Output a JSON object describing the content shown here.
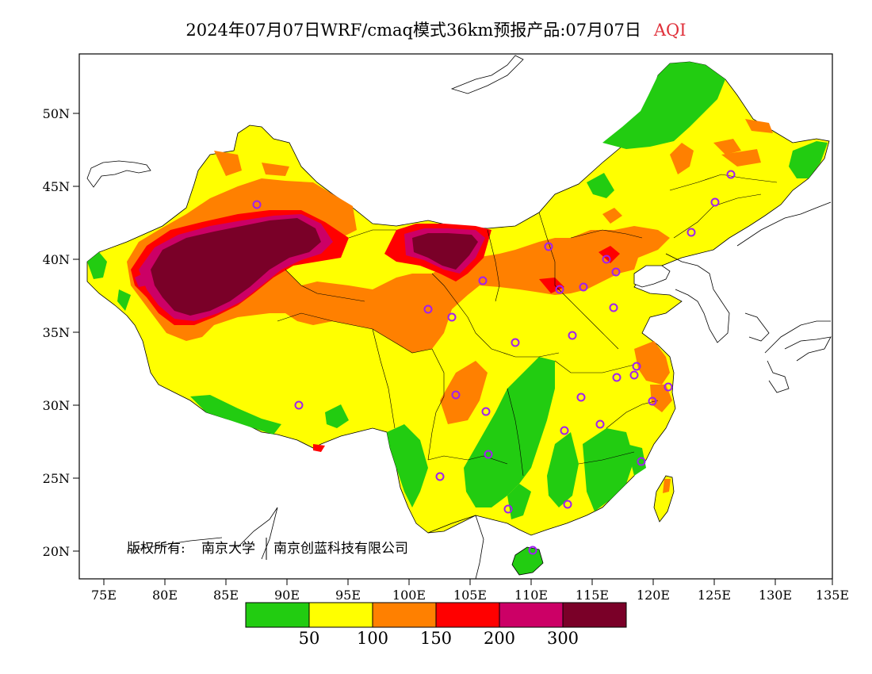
{
  "title": "2024年07月07日WRF/cmaq模式36km预报产品:07月07日",
  "variable": "AQI",
  "colors": {
    "good": "#22cc11",
    "moderate": "#ffff00",
    "usg": "#ff8000",
    "unhealthy": "#ff0000",
    "very_unhealthy": "#cc0066",
    "hazardous": "#7a0028",
    "city_marker": "#a020f0"
  },
  "axes": {
    "lon_ticks": [
      "75E",
      "80E",
      "85E",
      "90E",
      "95E",
      "100E",
      "105E",
      "110E",
      "115E",
      "120E",
      "125E",
      "130E",
      "135E"
    ],
    "lat_ticks": [
      "50N",
      "45N",
      "40N",
      "35N",
      "30N",
      "25N",
      "20N"
    ]
  },
  "legend": {
    "labels": [
      "50",
      "100",
      "150",
      "200",
      "300"
    ]
  },
  "copyright": {
    "prefix": "版权所有:",
    "org1": "南京大学",
    "org2": "南京创蓝科技有限公司"
  }
}
